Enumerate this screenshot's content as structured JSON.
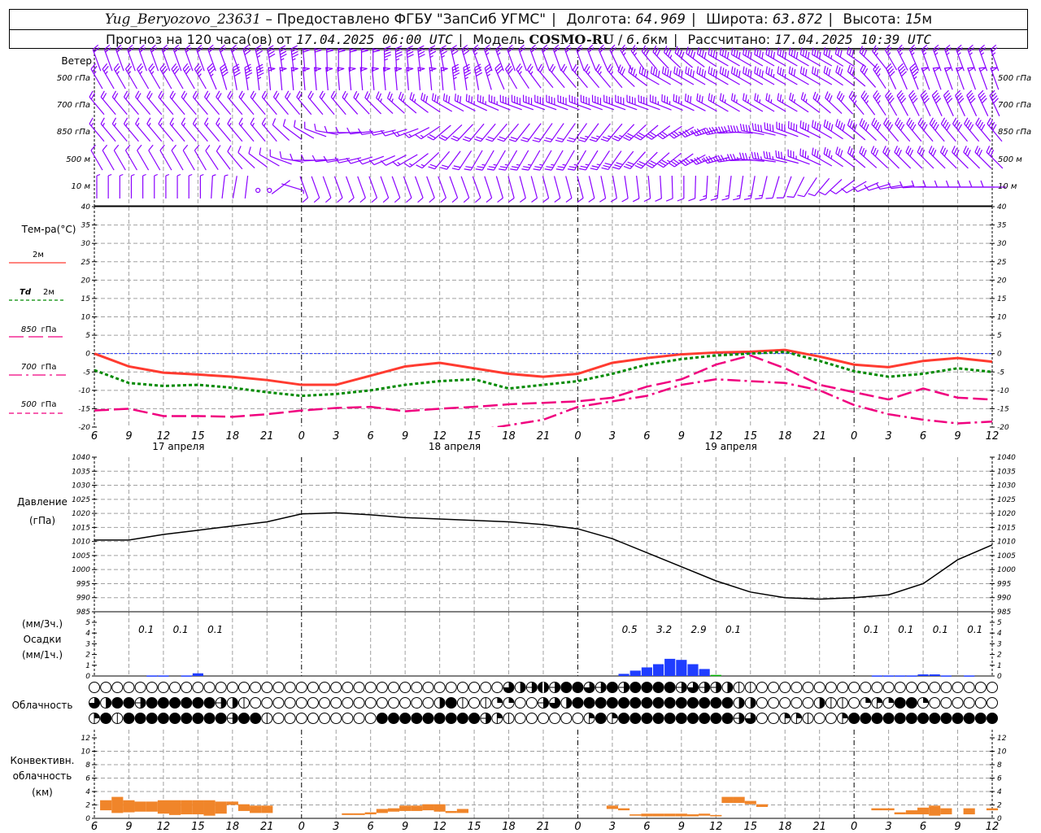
{
  "header": {
    "station": "Yug_Beryozovo_23631",
    "provider": "– Предоставлено ФГБУ \"ЗапСиб УГМС\"",
    "lon_label": "Долгота:",
    "lon": "64.969",
    "lat_label": "Широта:",
    "lat": "63.872",
    "alt_label": "Высота:",
    "alt": "15",
    "alt_unit": "м",
    "forecast_label": "Прогноз на 120 часа(ов) от",
    "forecast_start": "17.04.2025 06:00 UTC",
    "model_label": "Модель",
    "model": "COSMO-RU",
    "resolution": "6.6",
    "resolution_unit": "км",
    "computed_label": "Рассчитано:",
    "computed": "17.04.2025 10:39 UTC"
  },
  "labels": {
    "wind": "Ветер",
    "wind_levels": [
      "500 гПа",
      "700 гПа",
      "850 гПа",
      "500 м",
      "10 м"
    ],
    "temp_title": "Тем-ра(°C)",
    "legend_t2m": "2м",
    "legend_td_a": "Td",
    "legend_td_b": "2м",
    "legend_850_a": "850",
    "legend_850_b": "гПа",
    "legend_700_a": "700",
    "legend_700_b": "гПа",
    "legend_500_a": "500",
    "legend_500_b": "гПа",
    "pressure_a": "Давление",
    "pressure_b": "(гПа)",
    "precip_a": "(мм/3ч.)",
    "precip_b": "Осадки",
    "precip_c": "(мм/1ч.)",
    "clouds": "Облачность",
    "conv_a": "Конвективн.",
    "conv_b": "облачность",
    "conv_c": "(км)",
    "dates": [
      {
        "hour": 7.3,
        "text": "17 апреля"
      },
      {
        "hour": 31.3,
        "text": "18 апреля"
      },
      {
        "hour": 55.3,
        "text": "19 апреля"
      }
    ]
  },
  "colors": {
    "t2m": "#ff3b30",
    "td": "#008a00",
    "upper": "#f0007f",
    "zero": "#2233ff",
    "wind": "#8a00ff",
    "precip": "#1f3dff",
    "precip_mixed": "#00b000",
    "conv": "#f0852a",
    "grid": "#a0a0a0"
  },
  "chart_data": {
    "type": "meteogram",
    "start_hour_utc": 6,
    "hours": 78,
    "step_hours": 3,
    "wind": {
      "levels": [
        "Ветер",
        "500 гПа",
        "700 гПа",
        "850 гПа",
        "500 м",
        "10 м"
      ],
      "dir": [
        [
          340,
          340,
          340,
          340,
          340,
          350,
          355,
          0,
          0,
          355,
          350,
          340,
          340,
          340,
          340,
          335,
          320,
          310,
          300,
          300,
          300,
          300,
          305,
          330,
          340,
          340,
          340
        ],
        [
          330,
          330,
          330,
          330,
          350,
          355,
          355,
          355,
          355,
          355,
          355,
          350,
          330,
          320,
          320,
          320,
          300,
          300,
          300,
          300,
          300,
          300,
          310,
          335,
          340,
          340,
          340
        ],
        [
          320,
          320,
          320,
          320,
          320,
          320,
          320,
          320,
          315,
          310,
          300,
          295,
          290,
          290,
          290,
          290,
          290,
          295,
          300,
          300,
          300,
          310,
          320,
          330,
          335,
          335,
          335
        ],
        [
          320,
          320,
          320,
          320,
          320,
          320,
          300,
          270,
          260,
          250,
          230,
          220,
          220,
          215,
          215,
          220,
          230,
          240,
          260,
          280,
          290,
          300,
          310,
          320,
          320,
          320,
          320
        ],
        [
          330,
          330,
          330,
          330,
          320,
          300,
          270,
          260,
          250,
          240,
          220,
          210,
          210,
          210,
          210,
          215,
          225,
          235,
          255,
          275,
          285,
          300,
          310,
          315,
          315,
          315,
          315
        ],
        [
          0,
          0,
          0,
          0,
          10,
          0,
          160,
          160,
          160,
          160,
          160,
          160,
          165,
          165,
          165,
          170,
          175,
          180,
          185,
          190,
          200,
          220,
          240,
          260,
          270,
          270,
          270
        ]
      ],
      "speed": [
        [
          10,
          10,
          10,
          10,
          12,
          22,
          25,
          25,
          25,
          22,
          18,
          14,
          12,
          12,
          12,
          12,
          15,
          20,
          22,
          22,
          22,
          20,
          16,
          14,
          14,
          14,
          14
        ],
        [
          14,
          14,
          15,
          18,
          22,
          25,
          25,
          25,
          25,
          25,
          25,
          22,
          15,
          12,
          12,
          14,
          20,
          22,
          22,
          22,
          18,
          15,
          15,
          20,
          25,
          25,
          25
        ],
        [
          10,
          10,
          10,
          10,
          10,
          10,
          10,
          10,
          12,
          14,
          16,
          18,
          20,
          20,
          20,
          20,
          20,
          18,
          15,
          14,
          14,
          15,
          18,
          20,
          20,
          22,
          22
        ],
        [
          8,
          8,
          8,
          8,
          8,
          8,
          6,
          5,
          6,
          8,
          10,
          12,
          12,
          12,
          12,
          14,
          16,
          18,
          20,
          20,
          20,
          20,
          20,
          20,
          20,
          20,
          20
        ],
        [
          6,
          6,
          6,
          6,
          6,
          6,
          5,
          5,
          6,
          8,
          10,
          12,
          14,
          14,
          14,
          15,
          17,
          18,
          18,
          18,
          18,
          18,
          17,
          16,
          16,
          16,
          16
        ],
        [
          4,
          4,
          4,
          4,
          2,
          0,
          5,
          5,
          5,
          6,
          6,
          6,
          6,
          6,
          6,
          6,
          6,
          7,
          8,
          8,
          7,
          6,
          6,
          6,
          6,
          6,
          6
        ]
      ]
    },
    "temperature": {
      "ylim": [
        -20,
        40
      ],
      "yticks_step": 5,
      "series": [
        {
          "name": "2м",
          "style": "solid",
          "values": [
            0,
            -3.5,
            -5.2,
            -5.7,
            -6.3,
            -7.2,
            -8.5,
            -8.5,
            -6,
            -3.5,
            -2.5,
            -4,
            -5.5,
            -6.3,
            -5.5,
            -2.5,
            -1.2,
            -0.2,
            0.3,
            0.5,
            1,
            -0.8,
            -3,
            -3.7,
            -2,
            -1.2,
            -2.2
          ]
        },
        {
          "name": "Td 2м",
          "style": "dotted",
          "values": [
            -4.5,
            -8,
            -8.8,
            -8.5,
            -9.3,
            -10.5,
            -11.5,
            -11,
            -10,
            -8.5,
            -7.5,
            -7,
            -9.5,
            -8.5,
            -7.5,
            -5.5,
            -3,
            -1.5,
            -0.5,
            0,
            0.5,
            -2,
            -4.8,
            -6.3,
            -5.5,
            -4,
            -5
          ]
        },
        {
          "name": "850 гПа",
          "style": "longdash",
          "values": [
            -15.5,
            -15,
            -17,
            -17,
            -17.2,
            -16.5,
            -15.5,
            -14.8,
            -14.5,
            -15.7,
            -15,
            -14.5,
            -13.8,
            -13.4,
            -13,
            -12,
            -9,
            -7,
            -3,
            -0.5,
            -4,
            -8.5,
            -10.5,
            -12.5,
            -9.5,
            -12,
            -12.5
          ]
        },
        {
          "name": "700 гПа",
          "style": "dashdot",
          "values": [
            null,
            null,
            null,
            null,
            null,
            null,
            null,
            null,
            null,
            null,
            null,
            -21,
            -19.5,
            -18,
            -14.5,
            -13,
            -11.5,
            -8.5,
            -7,
            -7.5,
            -8,
            -10,
            -14,
            -16.5,
            -18,
            -19,
            -18.5
          ]
        },
        {
          "name": "500 гПа",
          "style": "shortdash",
          "values": []
        }
      ]
    },
    "pressure": {
      "ylim": [
        985,
        1040
      ],
      "yticks_step": 5,
      "values": [
        1010.5,
        1010.5,
        1012.5,
        1014,
        1015.5,
        1017,
        1019.8,
        1020.2,
        1019.5,
        1018.5,
        1018,
        1017.5,
        1017,
        1016,
        1014.5,
        1011,
        1006,
        1001,
        996,
        992,
        990,
        989.5,
        990,
        991,
        995,
        1003.5,
        1008.8
      ]
    },
    "precip": {
      "ylim": [
        0,
        5
      ],
      "hourly": {
        "5": 0.05,
        "6": 0.05,
        "8": 0.05,
        "9": 0.25,
        "46": 0.2,
        "47": 0.5,
        "48": 0.8,
        "49": 1.1,
        "50": 1.6,
        "51": 1.5,
        "52": 1.1,
        "53": 0.65,
        "68": 0.05,
        "69": 0.05,
        "70": 0.05,
        "71": 0.05,
        "72": 0.15,
        "73": 0.15,
        "74": 0.05,
        "76": 0.05
      },
      "mixed_hourly": {
        "54": 0.1
      },
      "totals_3h": [
        {
          "hour": 4.5,
          "text": "0.1"
        },
        {
          "hour": 7.5,
          "text": "0.1"
        },
        {
          "hour": 10.5,
          "text": "0.1"
        },
        {
          "hour": 46.5,
          "text": "0.5"
        },
        {
          "hour": 49.5,
          "text": "3.2"
        },
        {
          "hour": 52.5,
          "text": "2.9"
        },
        {
          "hour": 55.5,
          "text": "0.1"
        },
        {
          "hour": 67.5,
          "text": "0.1"
        },
        {
          "hour": 70.5,
          "text": "0.1"
        },
        {
          "hour": 73.5,
          "text": "0.1"
        },
        {
          "hour": 76.5,
          "text": "0.1"
        }
      ]
    },
    "clouds_okta": [
      "0000000000000000000000000000000000006457588658588885655411000000000000000000000",
      "6488588888854100000000000000004810122005648888888888888844000004110232882000000",
      "3818888888885881000000000888888888531000000383888888888856003310038888888888888"
    ],
    "convective_km": {
      "ylim": [
        0,
        12
      ],
      "yticks_step": 2,
      "hourly": {
        "1": [
          1.2,
          2.7
        ],
        "2": [
          0.8,
          3.2
        ],
        "3": [
          0.9,
          2.7
        ],
        "4": [
          1,
          2.5
        ],
        "5": [
          1,
          2.5
        ],
        "6": [
          0.7,
          2.7
        ],
        "7": [
          0.5,
          2.7
        ],
        "8": [
          0.6,
          2.7
        ],
        "9": [
          0.6,
          2.7
        ],
        "10": [
          0.4,
          2.7
        ],
        "11": [
          0.7,
          2.5
        ],
        "12": [
          2,
          2.5
        ],
        "13": [
          1.1,
          2.1
        ],
        "14": [
          0.8,
          1.9
        ],
        "15": [
          0.8,
          1.9
        ],
        "22": [
          0.5,
          0.75
        ],
        "23": [
          0.5,
          0.75
        ],
        "24": [
          0.6,
          0.9
        ],
        "25": [
          0.8,
          1.4
        ],
        "26": [
          1,
          1.5
        ],
        "27": [
          1.1,
          1.9
        ],
        "28": [
          1.1,
          1.9
        ],
        "29": [
          1.2,
          2.1
        ],
        "30": [
          1,
          2.1
        ],
        "31": [
          0.8,
          1.1
        ],
        "32": [
          0.8,
          1.4
        ],
        "45": [
          1.4,
          1.9
        ],
        "46": [
          1.2,
          1.5
        ],
        "47": [
          0.4,
          0.6
        ],
        "48": [
          0.3,
          0.7
        ],
        "49": [
          0.3,
          0.7
        ],
        "50": [
          0.3,
          0.7
        ],
        "51": [
          0.3,
          0.7
        ],
        "52": [
          0.3,
          0.6
        ],
        "53": [
          0.4,
          0.7
        ],
        "54": [
          0.3,
          0.5
        ],
        "55": [
          2.3,
          3.2
        ],
        "56": [
          2.3,
          3.2
        ],
        "57": [
          2.1,
          2.6
        ],
        "58": [
          1.7,
          2.1
        ],
        "68": [
          1.2,
          1.5
        ],
        "69": [
          1.2,
          1.5
        ],
        "70": [
          0.6,
          0.9
        ],
        "71": [
          0.6,
          1.2
        ],
        "72": [
          0.6,
          1.6
        ],
        "73": [
          0.4,
          1.9
        ],
        "74": [
          0.6,
          1.5
        ],
        "76": [
          0.6,
          1.5
        ],
        "78": [
          1.2,
          1.5
        ]
      }
    }
  }
}
